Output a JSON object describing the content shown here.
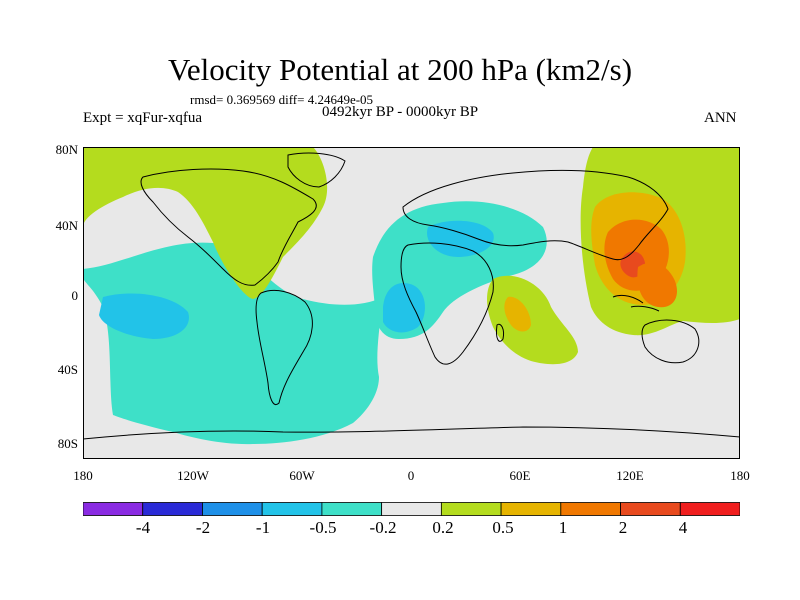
{
  "title": "Velocity Potential at 200 hPa (km2/s)",
  "stats": "rmsd= 0.369569 diff= 4.24649e-05",
  "experiment": "Expt = xqFur-xqfua",
  "period": "0492kyr BP - 0000kyr BP",
  "season": "ANN",
  "y_ticks": [
    "80N",
    "40N",
    "0",
    "40S",
    "80S"
  ],
  "x_ticks": [
    "180",
    "120W",
    "60W",
    "0",
    "60E",
    "120E",
    "180"
  ],
  "colorbar": {
    "labels": [
      "-4",
      "-2",
      "-1",
      "-0.5",
      "-0.2",
      "0.2",
      "0.5",
      "1",
      "2",
      "4"
    ],
    "colors": [
      "#8a2be2",
      "#2a2ad6",
      "#1e90e8",
      "#22c3e8",
      "#3ee0c8",
      "#e8e8e8",
      "#b4dc1e",
      "#e6b400",
      "#f07800",
      "#e84a1e",
      "#f01e1e"
    ]
  },
  "map_colors": {
    "background": "#e8e8e8",
    "neg_weak": "#3ee0c8",
    "neg_mid": "#22c3e8",
    "pos_weak": "#b4dc1e",
    "pos_mid": "#e6b400",
    "pos_strong": "#f07800",
    "pos_max": "#e84a1e"
  }
}
